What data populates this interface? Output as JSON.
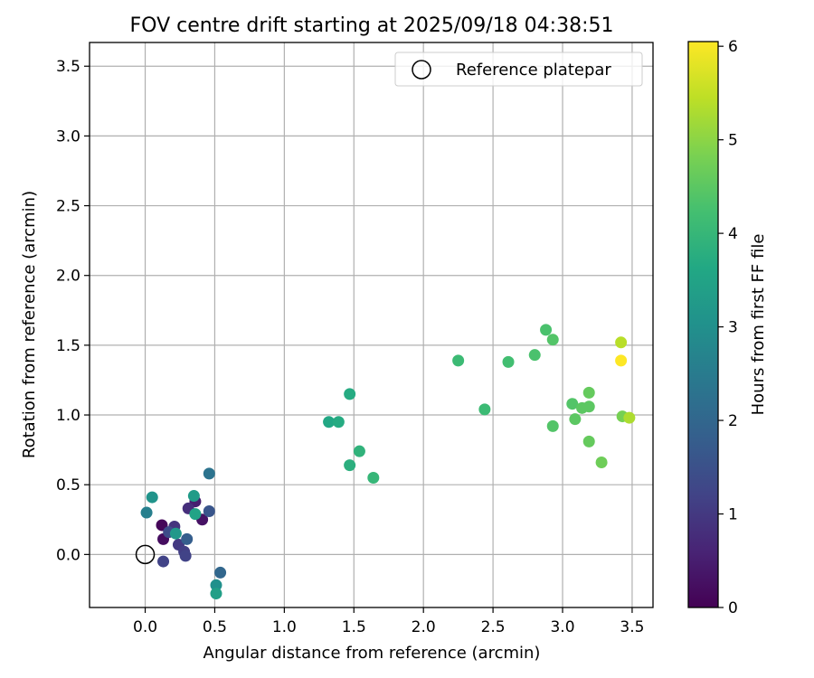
{
  "chart_data": {
    "type": "scatter",
    "title": "FOV centre drift starting at 2025/09/18 04:38:51",
    "xlabel": "Angular distance from reference (arcmin)",
    "ylabel": "Rotation from reference (arcmin)",
    "xlim": [
      -0.4,
      3.65
    ],
    "ylim": [
      -0.38,
      3.67
    ],
    "xticks": [
      "0.0",
      "0.5",
      "1.0",
      "1.5",
      "2.0",
      "2.5",
      "3.0",
      "3.5"
    ],
    "yticks": [
      "0.0",
      "0.5",
      "1.0",
      "1.5",
      "2.0",
      "2.5",
      "3.0",
      "3.5"
    ],
    "grid": true,
    "legend": {
      "placement": "upper-right",
      "entries": [
        "Reference platepar"
      ]
    },
    "reference_point": {
      "x": 0.0,
      "y": 0.0
    },
    "colorbar": {
      "label": "Hours from first FF file",
      "colormap": "viridis",
      "range": [
        0,
        6.05
      ],
      "ticks": [
        "0",
        "1",
        "2",
        "3",
        "4",
        "5",
        "6"
      ]
    },
    "series": [
      {
        "points": [
          {
            "x": 0.12,
            "y": 0.21,
            "hours": 0.1
          },
          {
            "x": 0.13,
            "y": 0.11,
            "hours": 0.2
          },
          {
            "x": 0.41,
            "y": 0.25,
            "hours": 0.3
          },
          {
            "x": 0.36,
            "y": 0.38,
            "hours": 0.5
          },
          {
            "x": 0.31,
            "y": 0.33,
            "hours": 0.8
          },
          {
            "x": 0.21,
            "y": 0.2,
            "hours": 0.9
          },
          {
            "x": 0.24,
            "y": 0.07,
            "hours": 1.0
          },
          {
            "x": 0.28,
            "y": 0.02,
            "hours": 1.1
          },
          {
            "x": 0.13,
            "y": -0.05,
            "hours": 1.2
          },
          {
            "x": 0.29,
            "y": -0.01,
            "hours": 1.2
          },
          {
            "x": 0.17,
            "y": 0.16,
            "hours": 1.4
          },
          {
            "x": 0.46,
            "y": 0.31,
            "hours": 1.6
          },
          {
            "x": 0.3,
            "y": 0.11,
            "hours": 1.8
          },
          {
            "x": 0.54,
            "y": -0.13,
            "hours": 2.0
          },
          {
            "x": 0.46,
            "y": 0.58,
            "hours": 2.3
          },
          {
            "x": 0.01,
            "y": 0.3,
            "hours": 2.6
          },
          {
            "x": 0.51,
            "y": -0.22,
            "hours": 3.0
          },
          {
            "x": 0.05,
            "y": 0.41,
            "hours": 3.1
          },
          {
            "x": 0.22,
            "y": 0.15,
            "hours": 3.2
          },
          {
            "x": 0.35,
            "y": 0.42,
            "hours": 3.3
          },
          {
            "x": 0.51,
            "y": -0.28,
            "hours": 3.4
          },
          {
            "x": 0.36,
            "y": 0.29,
            "hours": 3.5
          },
          {
            "x": 1.32,
            "y": 0.95,
            "hours": 3.6
          },
          {
            "x": 1.39,
            "y": 0.95,
            "hours": 3.7
          },
          {
            "x": 1.47,
            "y": 1.15,
            "hours": 3.7
          },
          {
            "x": 1.47,
            "y": 0.64,
            "hours": 3.8
          },
          {
            "x": 1.54,
            "y": 0.74,
            "hours": 3.9
          },
          {
            "x": 1.64,
            "y": 0.55,
            "hours": 4.0
          },
          {
            "x": 2.25,
            "y": 1.39,
            "hours": 4.1
          },
          {
            "x": 2.44,
            "y": 1.04,
            "hours": 4.1
          },
          {
            "x": 2.61,
            "y": 1.38,
            "hours": 4.2
          },
          {
            "x": 2.8,
            "y": 1.43,
            "hours": 4.3
          },
          {
            "x": 2.88,
            "y": 1.61,
            "hours": 4.3
          },
          {
            "x": 2.93,
            "y": 1.54,
            "hours": 4.4
          },
          {
            "x": 2.93,
            "y": 0.92,
            "hours": 4.4
          },
          {
            "x": 3.07,
            "y": 1.08,
            "hours": 4.4
          },
          {
            "x": 3.09,
            "y": 0.97,
            "hours": 4.5
          },
          {
            "x": 3.14,
            "y": 1.05,
            "hours": 4.5
          },
          {
            "x": 3.19,
            "y": 1.06,
            "hours": 4.5
          },
          {
            "x": 3.19,
            "y": 1.16,
            "hours": 4.6
          },
          {
            "x": 3.19,
            "y": 0.81,
            "hours": 4.6
          },
          {
            "x": 3.28,
            "y": 0.66,
            "hours": 4.7
          },
          {
            "x": 3.43,
            "y": 0.99,
            "hours": 4.8
          },
          {
            "x": 3.48,
            "y": 0.98,
            "hours": 5.3
          },
          {
            "x": 3.42,
            "y": 1.52,
            "hours": 5.4
          },
          {
            "x": 3.42,
            "y": 1.39,
            "hours": 6.05
          }
        ]
      }
    ]
  }
}
